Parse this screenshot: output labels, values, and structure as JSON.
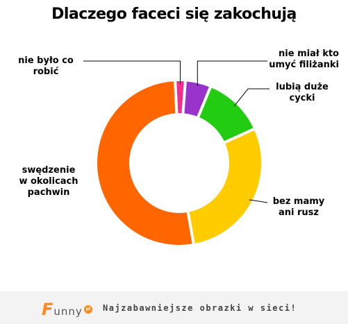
{
  "chart_data": {
    "type": "pie",
    "variant": "donut",
    "title": "Dlaczego faceci się zakochują",
    "slices": [
      {
        "label": "nie było co\nrobić",
        "value": 2,
        "color": "#ee2f8f"
      },
      {
        "label": "nie miał kto\numyć filiżanki",
        "value": 5,
        "color": "#9933cc"
      },
      {
        "label": "lubią duże\ncycki",
        "value": 12,
        "color": "#22cc11"
      },
      {
        "label": "bez mamy\nani rusz",
        "value": 29,
        "color": "#ffcc00"
      },
      {
        "label": "swędzenie\nw okolicach\npachwin",
        "value": 52,
        "color": "#ff6600"
      }
    ]
  },
  "footer": {
    "logo_text": "Funny",
    "logo_suffix": "pl",
    "tagline": "Najzabawniejsze obrazki w sieci!"
  }
}
